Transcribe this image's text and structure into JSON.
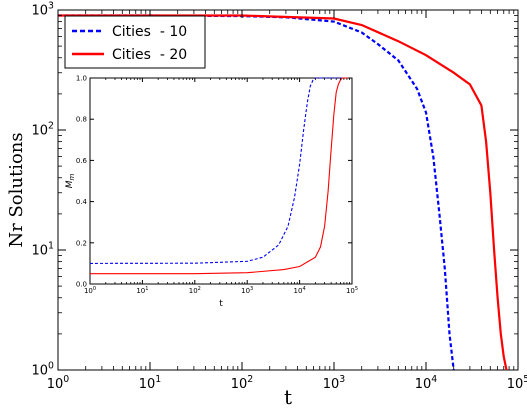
{
  "chart_data": [
    {
      "type": "line",
      "xlabel": "t",
      "ylabel": "Nr Solutions",
      "xscale": "log",
      "yscale": "log",
      "xlim": [
        1,
        100000
      ],
      "ylim": [
        1,
        1000
      ],
      "x_ticks": [
        {
          "value": 1,
          "base": "10",
          "exp": "0"
        },
        {
          "value": 10,
          "base": "10",
          "exp": "1"
        },
        {
          "value": 100,
          "base": "10",
          "exp": "2"
        },
        {
          "value": 1000,
          "base": "10",
          "exp": "3"
        },
        {
          "value": 10000,
          "base": "10",
          "exp": "4"
        },
        {
          "value": 100000,
          "base": "10",
          "exp": "5"
        }
      ],
      "y_ticks": [
        {
          "value": 1,
          "base": "10",
          "exp": "0"
        },
        {
          "value": 10,
          "base": "10",
          "exp": "1"
        },
        {
          "value": 100,
          "base": "10",
          "exp": "2"
        },
        {
          "value": 1000,
          "base": "10",
          "exp": "3"
        }
      ],
      "legend_position": "top-left",
      "series": [
        {
          "name": "Cities  - 10",
          "color": "#0000ff",
          "style": "dashed",
          "x": [
            1,
            10,
            100,
            300,
            1000,
            2000,
            3000,
            5000,
            8000,
            10000,
            12000,
            14000,
            16000,
            18000,
            20000
          ],
          "y": [
            900,
            900,
            890,
            870,
            800,
            650,
            520,
            380,
            220,
            140,
            60,
            20,
            7,
            2,
            1
          ]
        },
        {
          "name": "Cities  - 20",
          "color": "#ff0000",
          "style": "solid",
          "x": [
            1,
            10,
            100,
            1000,
            2000,
            5000,
            10000,
            20000,
            30000,
            40000,
            45000,
            50000,
            55000,
            60000,
            65000,
            70000,
            75000
          ],
          "y": [
            900,
            900,
            900,
            850,
            750,
            550,
            420,
            300,
            240,
            160,
            80,
            30,
            10,
            4,
            2,
            1.3,
            1
          ]
        }
      ]
    },
    {
      "type": "line",
      "xlabel": "t",
      "ylabel_base": "M",
      "ylabel_sub": "m",
      "xscale": "log",
      "yscale": "linear",
      "xlim": [
        1,
        100000
      ],
      "ylim": [
        0,
        1
      ],
      "x_ticks": [
        {
          "value": 1,
          "base": "10",
          "exp": "0"
        },
        {
          "value": 10,
          "base": "10",
          "exp": "1"
        },
        {
          "value": 100,
          "base": "10",
          "exp": "2"
        },
        {
          "value": 1000,
          "base": "10",
          "exp": "3"
        },
        {
          "value": 10000,
          "base": "10",
          "exp": "4"
        },
        {
          "value": 100000,
          "base": "10",
          "exp": "5"
        }
      ],
      "y_ticks": [
        "0.0",
        "0.2",
        "0.4",
        "0.6",
        "0.8",
        "1.0"
      ],
      "series": [
        {
          "name": "Cities  - 10",
          "color": "#0000ff",
          "style": "dashed",
          "x": [
            1,
            100,
            1000,
            2000,
            4000,
            6000,
            8000,
            10000,
            12000,
            14000,
            16000,
            18000,
            20000,
            100000
          ],
          "y": [
            0.1,
            0.101,
            0.11,
            0.13,
            0.19,
            0.28,
            0.42,
            0.58,
            0.75,
            0.88,
            0.96,
            0.99,
            1.0,
            1.0
          ]
        },
        {
          "name": "Cities  - 20",
          "color": "#ff0000",
          "style": "solid",
          "x": [
            1,
            100,
            1000,
            5000,
            10000,
            20000,
            25000,
            30000,
            35000,
            40000,
            45000,
            50000,
            55000,
            60000,
            65000,
            70000,
            100000
          ],
          "y": [
            0.05,
            0.05,
            0.055,
            0.07,
            0.085,
            0.13,
            0.18,
            0.28,
            0.45,
            0.65,
            0.82,
            0.93,
            0.97,
            0.99,
            1.0,
            1.0,
            1.0
          ]
        }
      ]
    }
  ]
}
